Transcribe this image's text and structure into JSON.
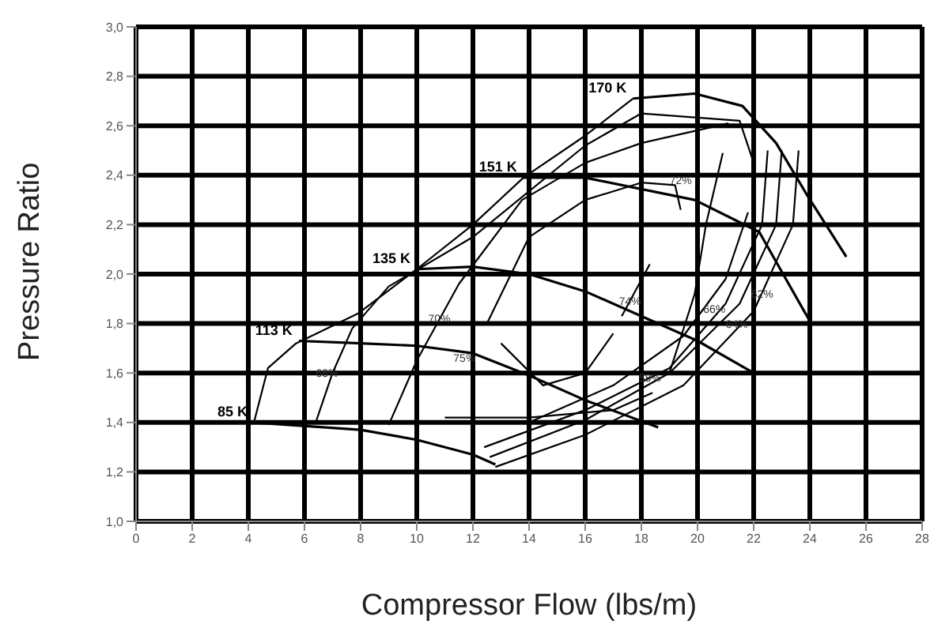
{
  "chart_data": {
    "type": "line",
    "xlabel": "Compressor Flow (lbs/m)",
    "ylabel": "Pressure Ratio",
    "xlim": [
      0,
      28
    ],
    "xticks": [
      0,
      2,
      4,
      6,
      8,
      10,
      12,
      14,
      16,
      18,
      20,
      22,
      24,
      26,
      28
    ],
    "ylim": [
      1,
      3
    ],
    "yticks": [
      {
        "value": 1,
        "label": "1,0"
      },
      {
        "value": 1.2,
        "label": "1,2"
      },
      {
        "value": 1.4,
        "label": "1,4"
      },
      {
        "value": 1.6,
        "label": "1,6"
      },
      {
        "value": 1.8,
        "label": "1,8"
      },
      {
        "value": 2,
        "label": "2,0"
      },
      {
        "value": 2.2,
        "label": "2,2"
      },
      {
        "value": 2.4,
        "label": "2,4"
      },
      {
        "value": 2.6,
        "label": "2,6"
      },
      {
        "value": 2.8,
        "label": "2,8"
      },
      {
        "value": 3,
        "label": "3,0"
      }
    ],
    "grid": true,
    "legend": false,
    "marker": "none",
    "line_style": "solid",
    "series": [
      {
        "name": "85 K",
        "color": "#000000",
        "x": [
          4.2,
          8,
          10,
          12,
          12.8
        ],
        "values": [
          1.4,
          1.37,
          1.33,
          1.27,
          1.23
        ]
      },
      {
        "name": "113 K",
        "color": "#000000",
        "x": [
          5.8,
          8,
          10,
          12,
          14,
          16,
          18.6
        ],
        "values": [
          1.73,
          1.72,
          1.71,
          1.68,
          1.59,
          1.49,
          1.38
        ]
      },
      {
        "name": "135 K",
        "color": "#000000",
        "x": [
          10,
          12,
          14,
          16,
          18,
          20,
          22
        ],
        "values": [
          2.02,
          2.03,
          2,
          1.93,
          1.83,
          1.73,
          1.6
        ]
      },
      {
        "name": "151 K",
        "color": "#000000",
        "x": [
          13.8,
          16,
          19.9,
          22.2,
          24
        ],
        "values": [
          2.39,
          2.39,
          2.3,
          2.17,
          1.81
        ]
      },
      {
        "name": "170 K",
        "color": "#000000",
        "x": [
          17.7,
          19.9,
          21.6,
          22.8,
          23.9,
          25.3
        ],
        "values": [
          2.71,
          2.73,
          2.68,
          2.53,
          2.32,
          2.07
        ]
      },
      {
        "color": "#000000",
        "x": [
          4.2,
          4.7,
          5.7,
          7.9,
          10,
          12,
          13.8,
          16,
          17.7
        ],
        "values": [
          1.4,
          1.62,
          1.72,
          1.84,
          2.02,
          2.2,
          2.39,
          2.56,
          2.71
        ]
      },
      {
        "color": "#000000",
        "x": [
          6.4,
          7,
          7.7,
          9,
          12,
          16,
          18,
          21.5,
          22
        ],
        "values": [
          1.4,
          1.6,
          1.78,
          1.95,
          2.15,
          2.52,
          2.65,
          2.62,
          2.45
        ]
      },
      {
        "color": "#000000",
        "x": [
          14,
          17,
          19.5,
          21,
          21.8
        ],
        "values": [
          1.4,
          1.55,
          1.75,
          1.98,
          2.25
        ]
      },
      {
        "color": "#000000",
        "x": [
          9,
          10,
          11.5,
          13.75,
          16,
          18,
          21.1
        ],
        "values": [
          1.39,
          1.65,
          1.96,
          2.3,
          2.45,
          2.53,
          2.61
        ]
      },
      {
        "color": "#000000",
        "x": [
          19,
          19.9,
          20.3,
          20.9
        ],
        "values": [
          1.6,
          1.92,
          2.2,
          2.49
        ]
      },
      {
        "color": "#000000",
        "x": [
          11,
          14,
          17,
          18.4
        ],
        "values": [
          1.42,
          1.42,
          1.45,
          1.52
        ]
      },
      {
        "color": "#000000",
        "x": [
          12.5,
          14,
          16,
          18,
          19.2,
          19.4
        ],
        "values": [
          1.8,
          2.15,
          2.3,
          2.37,
          2.36,
          2.26
        ]
      },
      {
        "color": "#000000",
        "x": [
          17.3,
          18.3
        ],
        "values": [
          1.83,
          2.04
        ]
      },
      {
        "color": "#000000",
        "x": [
          13,
          14.5,
          16,
          17
        ],
        "values": [
          1.72,
          1.55,
          1.6,
          1.76
        ]
      },
      {
        "color": "#000000",
        "x": [
          12.4,
          16,
          19,
          21,
          22.3,
          22.5
        ],
        "values": [
          1.3,
          1.45,
          1.62,
          1.88,
          2.2,
          2.5
        ]
      },
      {
        "color": "#000000",
        "x": [
          12.6,
          16,
          19,
          21.5,
          22.8,
          23
        ],
        "values": [
          1.26,
          1.41,
          1.6,
          1.88,
          2.2,
          2.5
        ]
      },
      {
        "color": "#000000",
        "x": [
          12.8,
          16,
          19.5,
          22,
          23.4,
          23.6
        ],
        "values": [
          1.22,
          1.35,
          1.55,
          1.85,
          2.2,
          2.5
        ]
      }
    ],
    "annotations": [
      {
        "text": "68%",
        "x": 6.8,
        "y": 1.6
      },
      {
        "text": "70%",
        "x": 10.8,
        "y": 1.82
      },
      {
        "text": "72%",
        "x": 19.4,
        "y": 2.38
      },
      {
        "text": "74%",
        "x": 17.6,
        "y": 1.89
      },
      {
        "text": "75%",
        "x": 11.7,
        "y": 1.66
      },
      {
        "text": "58%",
        "x": 18.3,
        "y": 1.58
      },
      {
        "text": "66%",
        "x": 20.6,
        "y": 1.86
      },
      {
        "text": "64%",
        "x": 21.4,
        "y": 1.8
      },
      {
        "text": "62%",
        "x": 22.3,
        "y": 1.92
      }
    ]
  }
}
